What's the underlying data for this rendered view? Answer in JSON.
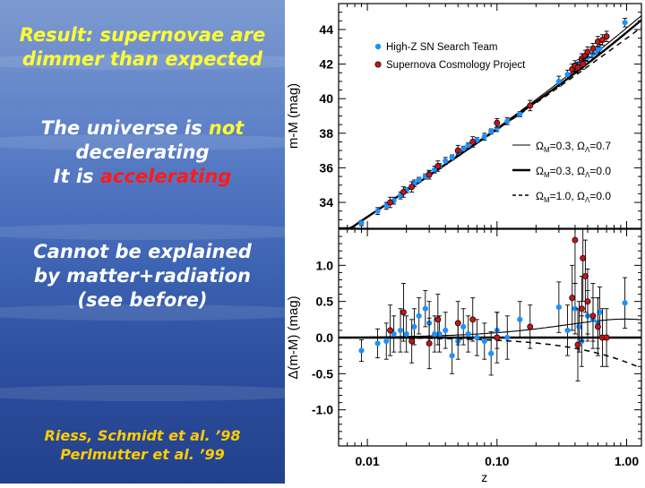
{
  "left": {
    "result_prefix": "Result:",
    "result_rest": " supernovae are",
    "result_line2": "dimmer than expected",
    "universe_a": "The universe is ",
    "universe_not": "not",
    "universe_b": "decelerating",
    "it_is": "It is ",
    "accelerating": "accelerating",
    "cannot_1": "Cannot be explained",
    "cannot_2": "by matter+radiation",
    "cannot_3": "(see before)",
    "ref_1": "Riess, Schmidt et al. ’98",
    "ref_2": "Perlmutter et al. ’99"
  },
  "colors": {
    "high_z": "#1e90ff",
    "scp": "#c81414",
    "yellow_text": "#ffff33",
    "red_text": "#ff1a1a",
    "gold_text": "#ffcc00"
  },
  "chart_data": [
    {
      "type": "scatter",
      "panel": "top",
      "xscale": "log",
      "xlim": [
        0.006,
        1.3
      ],
      "ylim": [
        32.5,
        45.5
      ],
      "yticks": [
        "34",
        "36",
        "38",
        "40",
        "42",
        "44"
      ],
      "ytick_values": [
        34,
        36,
        38,
        40,
        42,
        44
      ],
      "ylabel": "m-M (mag)",
      "legend_placement": "top-left",
      "series": [
        {
          "name": "High-Z SN Search Team",
          "marker": "circle-blue",
          "points": [
            [
              0.009,
              32.8
            ],
            [
              0.012,
              33.5
            ],
            [
              0.014,
              33.8
            ],
            [
              0.016,
              34.1
            ],
            [
              0.018,
              34.4
            ],
            [
              0.02,
              34.7
            ],
            [
              0.023,
              35.1
            ],
            [
              0.025,
              35.3
            ],
            [
              0.028,
              35.5
            ],
            [
              0.03,
              35.7
            ],
            [
              0.033,
              35.9
            ],
            [
              0.036,
              36.1
            ],
            [
              0.04,
              36.4
            ],
            [
              0.045,
              36.6
            ],
            [
              0.05,
              36.9
            ],
            [
              0.055,
              37.1
            ],
            [
              0.06,
              37.3
            ],
            [
              0.07,
              37.6
            ],
            [
              0.08,
              37.8
            ],
            [
              0.09,
              38.1
            ],
            [
              0.1,
              38.3
            ],
            [
              0.12,
              38.7
            ],
            [
              0.15,
              39.1
            ],
            [
              0.3,
              41.0
            ],
            [
              0.35,
              41.4
            ],
            [
              0.4,
              41.8
            ],
            [
              0.43,
              42.0
            ],
            [
              0.45,
              42.2
            ],
            [
              0.5,
              42.4
            ],
            [
              0.55,
              42.6
            ],
            [
              0.6,
              42.8
            ],
            [
              0.62,
              42.9
            ],
            [
              0.97,
              44.4
            ]
          ],
          "errors": [
            0.15,
            0.2,
            0.2,
            0.2,
            0.2,
            0.15,
            0.2,
            0.15,
            0.15,
            0.15,
            0.2,
            0.15,
            0.2,
            0.15,
            0.15,
            0.15,
            0.15,
            0.15,
            0.2,
            0.15,
            0.2,
            0.2,
            0.15,
            0.3,
            0.25,
            0.25,
            0.25,
            0.25,
            0.25,
            0.25,
            0.25,
            0.25,
            0.25
          ]
        },
        {
          "name": "Supernova Cosmology Project",
          "marker": "circle-red",
          "points": [
            [
              0.015,
              34.0
            ],
            [
              0.019,
              34.6
            ],
            [
              0.022,
              34.9
            ],
            [
              0.03,
              35.6
            ],
            [
              0.035,
              36.1
            ],
            [
              0.05,
              37.0
            ],
            [
              0.065,
              37.5
            ],
            [
              0.1,
              38.6
            ],
            [
              0.18,
              39.6
            ],
            [
              0.38,
              41.7
            ],
            [
              0.4,
              41.9
            ],
            [
              0.42,
              41.8
            ],
            [
              0.45,
              42.3
            ],
            [
              0.46,
              42.0
            ],
            [
              0.48,
              42.5
            ],
            [
              0.5,
              42.7
            ],
            [
              0.55,
              42.9
            ],
            [
              0.6,
              43.3
            ],
            [
              0.65,
              43.4
            ],
            [
              0.7,
              43.6
            ]
          ],
          "errors": [
            0.3,
            0.3,
            0.3,
            0.25,
            0.3,
            0.3,
            0.3,
            0.25,
            0.3,
            0.3,
            0.3,
            0.3,
            0.3,
            0.3,
            0.3,
            0.3,
            0.3,
            0.3,
            0.3,
            0.3
          ]
        }
      ],
      "models": [
        {
          "label_omega_m": "=0.3, ",
          "label_omega_l": "=0.7",
          "style": "solid-thin",
          "omega_m": 0.3,
          "omega_l": 0.7
        },
        {
          "label_omega_m": "=0.3, ",
          "label_omega_l": "=0.0",
          "style": "solid-thick",
          "omega_m": 0.3,
          "omega_l": 0.0
        },
        {
          "label_omega_m": "=1.0, ",
          "label_omega_l": "=0.0",
          "style": "dashed",
          "omega_m": 1.0,
          "omega_l": 0.0
        }
      ],
      "model_label_omega": "Ω",
      "model_label_sub_m": "M",
      "model_label_sub_l": "Λ"
    },
    {
      "type": "scatter",
      "panel": "bottom",
      "xscale": "log",
      "xlim": [
        0.006,
        1.3
      ],
      "ylim": [
        -1.5,
        1.5
      ],
      "xticks": [
        "0.01",
        "0.10",
        "1.00"
      ],
      "xtick_values": [
        0.01,
        0.1,
        1.0
      ],
      "yticks": [
        "-1.0",
        "-0.5",
        "0.0",
        "0.5",
        "1.0"
      ],
      "ytick_values": [
        -1.0,
        -0.5,
        0.0,
        0.5,
        1.0
      ],
      "xlabel": "z",
      "ylabel": "Δ(m-M) (mag)",
      "series": [
        {
          "name": "High-Z SN Search Team",
          "marker": "circle-blue",
          "points": [
            [
              0.009,
              -0.18
            ],
            [
              0.012,
              -0.08
            ],
            [
              0.014,
              -0.05
            ],
            [
              0.016,
              0.05
            ],
            [
              0.018,
              0.1
            ],
            [
              0.02,
              0.05
            ],
            [
              0.023,
              0.15
            ],
            [
              0.025,
              0.3
            ],
            [
              0.028,
              0.4
            ],
            [
              0.03,
              0.2
            ],
            [
              0.033,
              0.05
            ],
            [
              0.036,
              0.05
            ],
            [
              0.04,
              0.1
            ],
            [
              0.045,
              -0.25
            ],
            [
              0.05,
              -0.05
            ],
            [
              0.055,
              0.15
            ],
            [
              0.06,
              0.05
            ],
            [
              0.07,
              0.0
            ],
            [
              0.08,
              -0.05
            ],
            [
              0.09,
              -0.22
            ],
            [
              0.1,
              0.1
            ],
            [
              0.12,
              0.0
            ],
            [
              0.15,
              0.25
            ],
            [
              0.3,
              0.42
            ],
            [
              0.35,
              0.1
            ],
            [
              0.4,
              0.4
            ],
            [
              0.43,
              0.15
            ],
            [
              0.45,
              -0.05
            ],
            [
              0.5,
              0.3
            ],
            [
              0.55,
              0.25
            ],
            [
              0.6,
              0.2
            ],
            [
              0.62,
              0.35
            ],
            [
              0.97,
              0.48
            ]
          ],
          "errors": [
            0.15,
            0.2,
            0.25,
            0.25,
            0.3,
            0.25,
            0.25,
            0.25,
            0.25,
            0.3,
            0.25,
            0.25,
            0.25,
            0.25,
            0.25,
            0.25,
            0.25,
            0.25,
            0.25,
            0.3,
            0.25,
            0.3,
            0.25,
            0.35,
            0.35,
            0.35,
            0.35,
            0.35,
            0.35,
            0.3,
            0.35,
            0.35,
            0.35
          ]
        },
        {
          "name": "Supernova Cosmology Project",
          "marker": "circle-red",
          "points": [
            [
              0.015,
              0.1
            ],
            [
              0.019,
              0.35
            ],
            [
              0.022,
              -0.05
            ],
            [
              0.03,
              -0.08
            ],
            [
              0.035,
              0.25
            ],
            [
              0.05,
              0.2
            ],
            [
              0.065,
              0.25
            ],
            [
              0.1,
              0.0
            ],
            [
              0.18,
              0.15
            ],
            [
              0.38,
              0.55
            ],
            [
              0.4,
              1.35
            ],
            [
              0.42,
              -0.1
            ],
            [
              0.45,
              0.4
            ],
            [
              0.46,
              1.1
            ],
            [
              0.48,
              0.85
            ],
            [
              0.5,
              0.5
            ],
            [
              0.55,
              0.3
            ],
            [
              0.6,
              0.15
            ],
            [
              0.65,
              0.0
            ],
            [
              0.7,
              0.0
            ]
          ],
          "errors": [
            0.35,
            0.4,
            0.3,
            0.35,
            0.35,
            0.3,
            0.3,
            0.35,
            0.3,
            0.45,
            0.6,
            0.5,
            0.45,
            0.6,
            0.5,
            0.45,
            0.45,
            0.4,
            0.4,
            0.4
          ]
        }
      ]
    }
  ]
}
